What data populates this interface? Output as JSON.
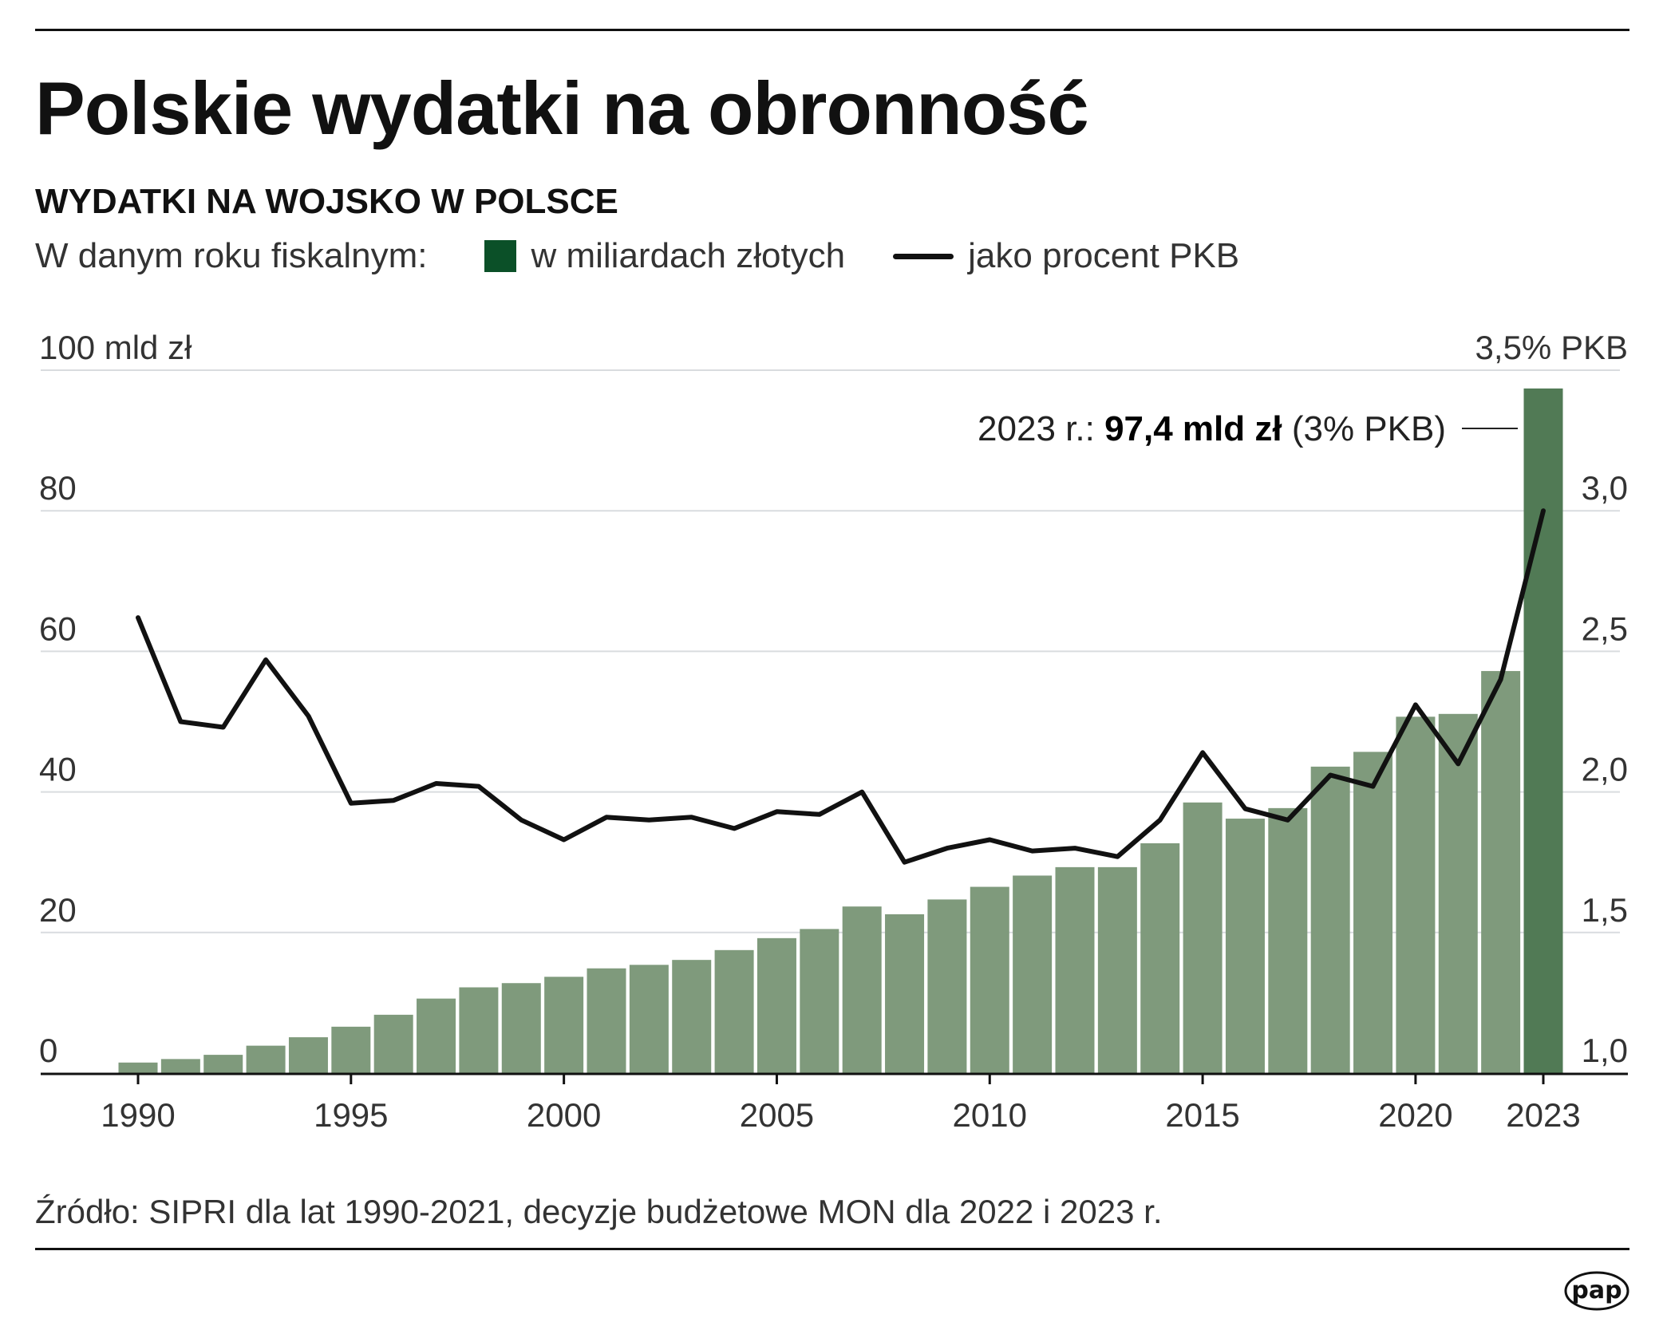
{
  "title": "Polskie wydatki na obronność",
  "subtitle": "WYDATKI NA WOJSKO W POLSCE",
  "legend": {
    "intro": "W danym roku fiskalnym:",
    "bars_label": "w miliardach złotych",
    "line_label": "jako procent PKB",
    "bars_color": "#0b5028",
    "line_color": "#111111"
  },
  "source": "Źródło: SIPRI dla lat 1990-2021, decyzje budżetowe MON dla 2022 i 2023 r.",
  "logo": "pap",
  "chart_data": {
    "type": "bar+line",
    "categories": [
      1990,
      1991,
      1992,
      1993,
      1994,
      1995,
      1996,
      1997,
      1998,
      1999,
      2000,
      2001,
      2002,
      2003,
      2004,
      2005,
      2006,
      2007,
      2008,
      2009,
      2010,
      2011,
      2012,
      2013,
      2014,
      2015,
      2016,
      2017,
      2018,
      2019,
      2020,
      2021,
      2022,
      2023
    ],
    "series": [
      {
        "name": "w miliardach złotych",
        "type": "bar",
        "axis": "left",
        "values": [
          1.5,
          2.0,
          2.6,
          3.9,
          5.1,
          6.6,
          8.3,
          10.6,
          12.2,
          12.8,
          13.7,
          14.9,
          15.4,
          16.1,
          17.5,
          19.2,
          20.5,
          23.7,
          22.6,
          24.7,
          26.5,
          28.1,
          29.3,
          29.3,
          32.7,
          38.5,
          36.2,
          37.7,
          43.6,
          45.7,
          50.7,
          51.1,
          57.2,
          97.4
        ],
        "color": "#7f9a7c",
        "highlight_color": "#517a55"
      },
      {
        "name": "jako procent PKB",
        "type": "line",
        "axis": "right",
        "values": [
          2.62,
          2.25,
          2.23,
          2.47,
          2.27,
          1.96,
          1.97,
          2.03,
          2.02,
          1.9,
          1.83,
          1.91,
          1.9,
          1.91,
          1.87,
          1.93,
          1.92,
          2.0,
          1.75,
          1.8,
          1.83,
          1.79,
          1.8,
          1.77,
          1.9,
          2.14,
          1.94,
          1.9,
          2.06,
          2.02,
          2.31,
          2.1,
          2.4,
          3.0
        ],
        "color": "#111111"
      }
    ],
    "left_axis": {
      "ylim": [
        0,
        100
      ],
      "ticks": [
        "0",
        "20",
        "40",
        "60",
        "80",
        "100 mld zł"
      ]
    },
    "right_axis": {
      "ylim": [
        1.0,
        3.5
      ],
      "ticks": [
        "1,0",
        "1,5",
        "2,0",
        "2,5",
        "3,0",
        "3,5% PKB"
      ]
    },
    "x_tick_labels": [
      "1990",
      "1995",
      "2000",
      "2005",
      "2010",
      "2015",
      "2020",
      "2023"
    ],
    "grid": true,
    "annotation": {
      "prefix": "2023 r.: ",
      "bold": "97,4 mld zł",
      "suffix": " (3% PKB)"
    }
  }
}
